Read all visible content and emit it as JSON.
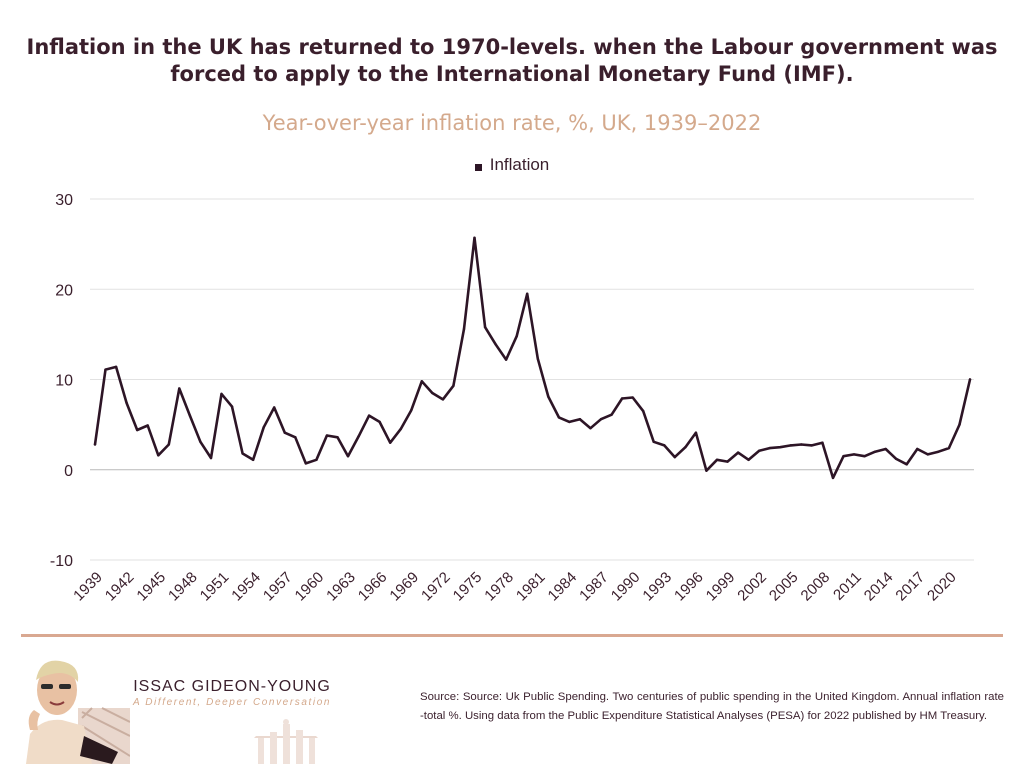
{
  "header": {
    "title_line1": "Inflation in the UK has returned to 1970-levels. when the Labour government was",
    "title_line2": "forced to apply to the International Monetary Fund (IMF)."
  },
  "chart_data": {
    "type": "line",
    "subtitle": "Year-over-year inflation rate, %, UK, 1939–2022",
    "legend": [
      "Inflation"
    ],
    "series": [
      {
        "name": "Inflation",
        "color": "#2d1526",
        "x": [
          1939,
          1940,
          1941,
          1942,
          1943,
          1944,
          1945,
          1946,
          1947,
          1948,
          1949,
          1950,
          1951,
          1952,
          1953,
          1954,
          1955,
          1956,
          1957,
          1958,
          1959,
          1960,
          1961,
          1962,
          1963,
          1964,
          1965,
          1966,
          1967,
          1968,
          1969,
          1970,
          1971,
          1972,
          1973,
          1974,
          1975,
          1976,
          1977,
          1978,
          1979,
          1980,
          1981,
          1982,
          1983,
          1984,
          1985,
          1986,
          1987,
          1988,
          1989,
          1990,
          1991,
          1992,
          1993,
          1994,
          1995,
          1996,
          1997,
          1998,
          1999,
          2000,
          2001,
          2002,
          2003,
          2004,
          2005,
          2006,
          2007,
          2008,
          2009,
          2010,
          2011,
          2012,
          2013,
          2014,
          2015,
          2016,
          2017,
          2018,
          2019,
          2020,
          2021,
          2022
        ],
        "values": [
          2.8,
          11.1,
          11.4,
          7.4,
          4.4,
          4.9,
          1.6,
          2.8,
          9.0,
          6.0,
          3.1,
          1.3,
          8.4,
          7.0,
          1.8,
          1.1,
          4.7,
          6.9,
          4.1,
          3.6,
          0.7,
          1.1,
          3.8,
          3.6,
          1.5,
          3.7,
          6.0,
          5.3,
          3.0,
          4.5,
          6.6,
          9.8,
          8.5,
          7.8,
          9.3,
          15.6,
          25.7,
          15.8,
          13.9,
          12.2,
          14.8,
          19.5,
          12.3,
          8.1,
          5.8,
          5.3,
          5.6,
          4.6,
          5.6,
          6.1,
          7.9,
          8.0,
          6.5,
          3.1,
          2.7,
          1.4,
          2.5,
          4.1,
          -0.1,
          1.1,
          0.9,
          1.9,
          1.1,
          2.1,
          2.4,
          2.5,
          2.7,
          2.8,
          2.7,
          3.0,
          -0.9,
          1.5,
          1.7,
          1.5,
          2.0,
          2.3,
          1.2,
          0.6,
          2.3,
          1.7,
          2.0,
          2.4,
          5.0,
          10.0
        ]
      }
    ],
    "y_ticks": [
      -10,
      0,
      10,
      20,
      30
    ],
    "ylim": [
      -10,
      30
    ],
    "xlim": [
      1939,
      2022
    ],
    "x_tick_labels": [
      "1939",
      "1942",
      "1945",
      "1948",
      "1951",
      "1954",
      "1957",
      "1960",
      "1963",
      "1966",
      "1969",
      "1972",
      "1975",
      "1978",
      "1981",
      "1984",
      "1987",
      "1990",
      "1993",
      "1996",
      "1999",
      "2002",
      "2005",
      "2008",
      "2011",
      "2014",
      "2017",
      "2020"
    ],
    "x_tick_values": [
      1939,
      1942,
      1945,
      1948,
      1951,
      1954,
      1957,
      1960,
      1963,
      1966,
      1969,
      1972,
      1975,
      1978,
      1981,
      1984,
      1987,
      1990,
      1993,
      1996,
      1999,
      2002,
      2005,
      2008,
      2011,
      2014,
      2017,
      2020
    ],
    "grid": true,
    "xlabel": "",
    "ylabel": ""
  },
  "footer": {
    "brand_name": "ISSAC GIDEON-YOUNG",
    "brand_tagline": "A Different, Deeper Conversation",
    "source": "Source: Source: Uk Public Spending. Two centuries of public spending in the United Kingdom. Annual inflation rate -total %. Using data from the Public Expenditure Statistical Analyses (PESA) for 2022 published by HM Treasury."
  },
  "colors": {
    "title": "#3a1f2c",
    "subtitle": "#d4a98c",
    "line": "#2d1526",
    "grid": "#e2e2e2",
    "divider": "#d9a891"
  }
}
